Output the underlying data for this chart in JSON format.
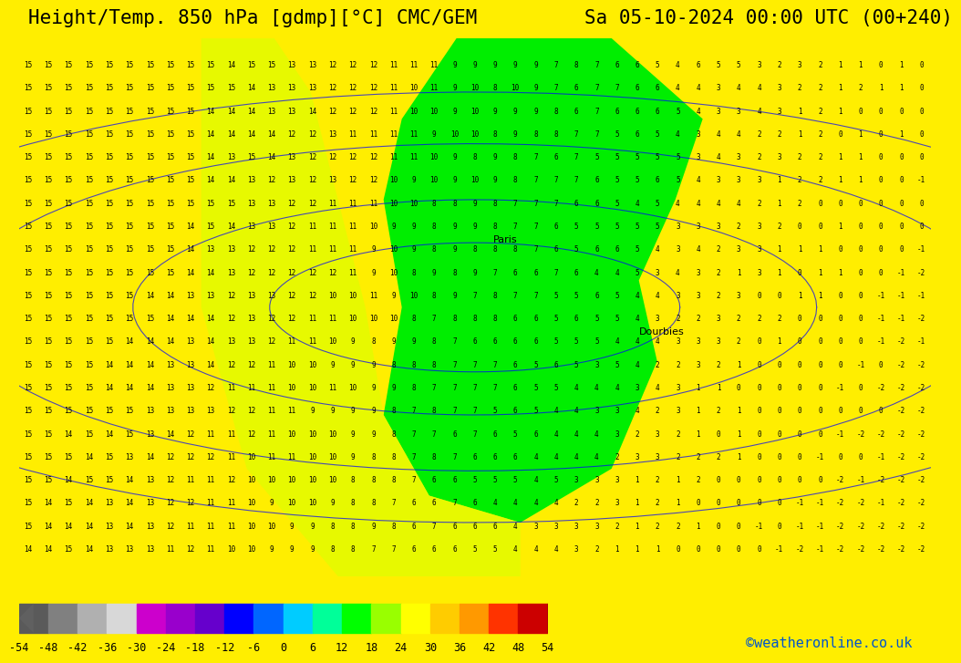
{
  "title_left": "Height/Temp. 850 hPa [gdmp][°C] CMC/GEM",
  "title_right": "Sa 05-10-2024 00:00 UTC (00+240)",
  "credit": "©weatheronline.co.uk",
  "colorbar_levels": [
    -54,
    -48,
    -42,
    -36,
    -30,
    -24,
    -18,
    -12,
    -6,
    0,
    6,
    12,
    18,
    24,
    30,
    36,
    42,
    48,
    54
  ],
  "colorbar_colors": [
    "#5a5a5a",
    "#808080",
    "#b0b0b0",
    "#d8d8d8",
    "#cc00cc",
    "#9900cc",
    "#6600cc",
    "#0000ff",
    "#0066ff",
    "#00ccff",
    "#00ff99",
    "#00ff00",
    "#99ff00",
    "#ffff00",
    "#ffcc00",
    "#ff9900",
    "#ff3300",
    "#cc0000",
    "#800000"
  ],
  "bg_color": "#ffff00",
  "map_colors": {
    "yellow_warm": "#ffff00",
    "yellow_green": "#ccff00",
    "green_bright": "#00ff00",
    "green_lime": "#66ff00"
  },
  "title_fontsize": 15,
  "credit_fontsize": 11,
  "label_fontsize": 10
}
